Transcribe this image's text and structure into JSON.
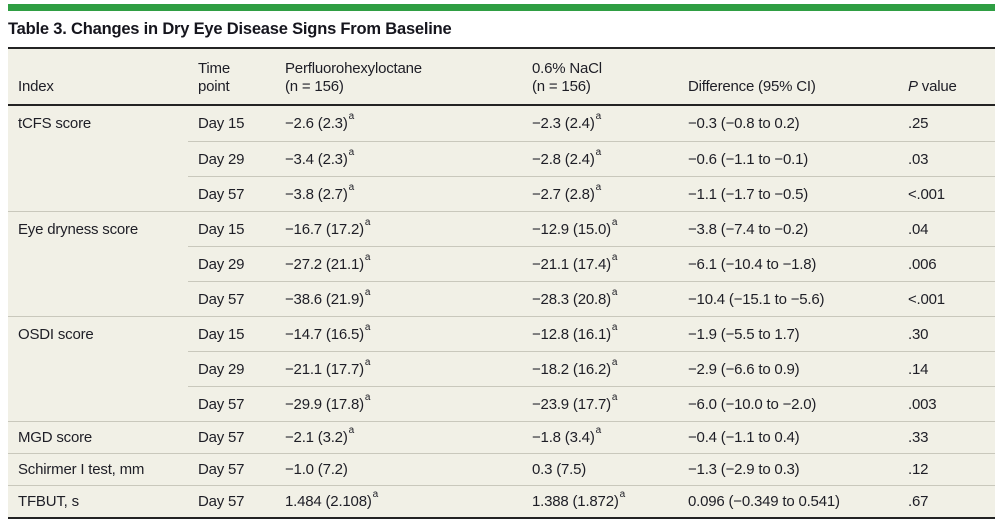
{
  "title": "Table 3. Changes in Dry Eye Disease Signs From Baseline",
  "colors": {
    "accent_green": "#2f9e43",
    "table_background": "#f1f0e6",
    "dark_rule": "#232323",
    "row_divider": "#c9c8bc"
  },
  "header": {
    "index": "Index",
    "time_point": "Time\npoint",
    "pfho": "Perfluorohexyloctane\n(n = 156)",
    "nacl": "0.6% NaCl\n(n = 156)",
    "difference": "Difference (95% CI)",
    "p_italic": "P",
    "p_rest": " value"
  },
  "rows": [
    {
      "index": "tCFS score",
      "time": "Day 15",
      "pfho": "−2.6 (2.3)",
      "pfho_sup": "a",
      "nacl": "−2.3 (2.4)",
      "nacl_sup": "a",
      "diff": "−0.3 (−0.8 to 0.2)",
      "p": ".25"
    },
    {
      "index": "",
      "time": "Day 29",
      "pfho": "−3.4 (2.3)",
      "pfho_sup": "a",
      "nacl": "−2.8 (2.4)",
      "nacl_sup": "a",
      "diff": "−0.6 (−1.1 to −0.1)",
      "p": ".03"
    },
    {
      "index": "",
      "time": "Day 57",
      "pfho": "−3.8 (2.7)",
      "pfho_sup": "a",
      "nacl": "−2.7 (2.8)",
      "nacl_sup": "a",
      "diff": "−1.1 (−1.7 to −0.5)",
      "p": "<.001"
    },
    {
      "index": "Eye dryness score",
      "time": "Day 15",
      "pfho": "−16.7 (17.2)",
      "pfho_sup": "a",
      "nacl": "−12.9 (15.0)",
      "nacl_sup": "a",
      "diff": "−3.8 (−7.4 to −0.2)",
      "p": ".04"
    },
    {
      "index": "",
      "time": "Day 29",
      "pfho": "−27.2 (21.1)",
      "pfho_sup": "a",
      "nacl": "−21.1 (17.4)",
      "nacl_sup": "a",
      "diff": "−6.1 (−10.4 to −1.8)",
      "p": ".006"
    },
    {
      "index": "",
      "time": "Day 57",
      "pfho": "−38.6 (21.9)",
      "pfho_sup": "a",
      "nacl": "−28.3 (20.8)",
      "nacl_sup": "a",
      "diff": "−10.4 (−15.1 to −5.6)",
      "p": "<.001"
    },
    {
      "index": "OSDI score",
      "time": "Day 15",
      "pfho": "−14.7 (16.5)",
      "pfho_sup": "a",
      "nacl": "−12.8 (16.1)",
      "nacl_sup": "a",
      "diff": "−1.9 (−5.5 to 1.7)",
      "p": ".30"
    },
    {
      "index": "",
      "time": "Day 29",
      "pfho": "−21.1 (17.7)",
      "pfho_sup": "a",
      "nacl": "−18.2 (16.2)",
      "nacl_sup": "a",
      "diff": "−2.9 (−6.6 to 0.9)",
      "p": ".14"
    },
    {
      "index": "",
      "time": "Day 57",
      "pfho": "−29.9 (17.8)",
      "pfho_sup": "a",
      "nacl": "−23.9 (17.7)",
      "nacl_sup": "a",
      "diff": "−6.0 (−10.0 to −2.0)",
      "p": ".003"
    },
    {
      "index": "MGD score",
      "time": "Day 57",
      "pfho": "−2.1 (3.2)",
      "pfho_sup": "a",
      "nacl": "−1.8 (3.4)",
      "nacl_sup": "a",
      "diff": "−0.4 (−1.1 to 0.4)",
      "p": ".33"
    },
    {
      "index": "Schirmer I test, mm",
      "time": "Day 57",
      "pfho": "−1.0 (7.2)",
      "pfho_sup": "",
      "nacl": "0.3 (7.5)",
      "nacl_sup": "",
      "diff": "−1.3 (−2.9 to 0.3)",
      "p": ".12"
    },
    {
      "index": "TFBUT, s",
      "time": "Day 57",
      "pfho": "1.484 (2.108)",
      "pfho_sup": "a",
      "nacl": "1.388 (1.872)",
      "nacl_sup": "a",
      "diff": "0.096 (−0.349 to 0.541)",
      "p": ".67"
    }
  ]
}
